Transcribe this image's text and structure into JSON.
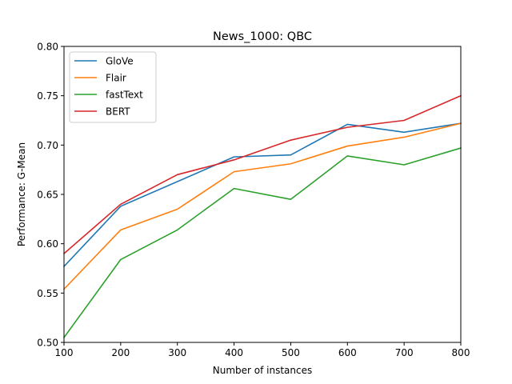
{
  "chart_data": {
    "type": "line",
    "title": "News_1000: QBC",
    "xlabel": "Number of instances",
    "ylabel": "Performance: G-Mean",
    "x": [
      100,
      200,
      300,
      400,
      500,
      600,
      700,
      800
    ],
    "xlim": [
      100,
      800
    ],
    "ylim": [
      0.5,
      0.8
    ],
    "xticks": [
      "100",
      "200",
      "300",
      "400",
      "500",
      "600",
      "700",
      "800"
    ],
    "yticks": [
      "0.50",
      "0.55",
      "0.60",
      "0.65",
      "0.70",
      "0.75",
      "0.80"
    ],
    "grid": false,
    "legend_position": "top-left",
    "series": [
      {
        "name": "GloVe",
        "color": "#1f77b4",
        "values": [
          0.577,
          0.638,
          0.663,
          0.688,
          0.69,
          0.721,
          0.713,
          0.722
        ]
      },
      {
        "name": "Flair",
        "color": "#ff7f0e",
        "values": [
          0.554,
          0.614,
          0.635,
          0.673,
          0.681,
          0.699,
          0.708,
          0.722
        ]
      },
      {
        "name": "fastText",
        "color": "#2ca02c",
        "values": [
          0.505,
          0.584,
          0.614,
          0.656,
          0.645,
          0.689,
          0.68,
          0.697
        ]
      },
      {
        "name": "BERT",
        "color": "#d62728",
        "values": [
          0.59,
          0.64,
          0.67,
          0.685,
          0.705,
          0.718,
          0.725,
          0.75
        ]
      }
    ]
  }
}
